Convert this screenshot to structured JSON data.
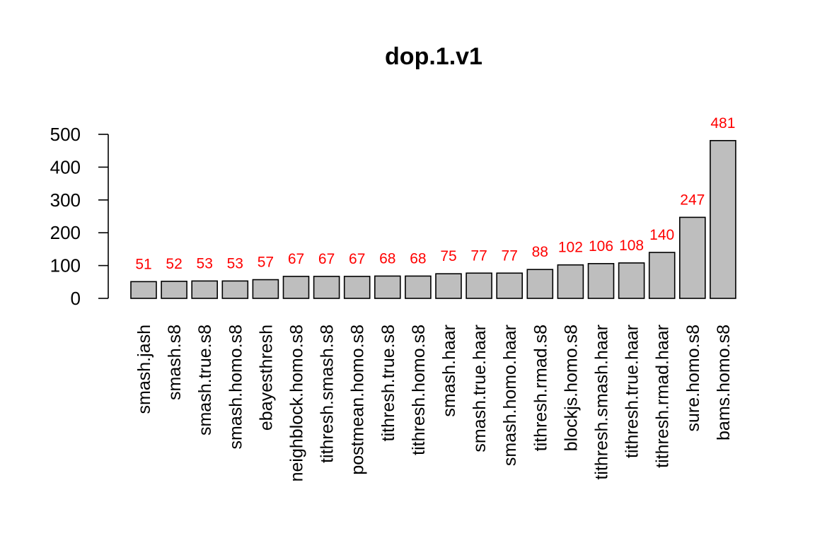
{
  "chart_data": {
    "type": "bar",
    "title": "dop.1.v1",
    "xlabel": "",
    "ylabel": "",
    "categories": [
      "smash.jash",
      "smash.s8",
      "smash.true.s8",
      "smash.homo.s8",
      "ebayesthresh",
      "neighblock.homo.s8",
      "tithresh.smash.s8",
      "postmean.homo.s8",
      "tithresh.true.s8",
      "tithresh.homo.s8",
      "smash.haar",
      "smash.true.haar",
      "smash.homo.haar",
      "tithresh.rmad.s8",
      "blockjs.homo.s8",
      "tithresh.smash.haar",
      "tithresh.true.haar",
      "tithresh.rmad.haar",
      "sure.homo.s8",
      "bams.homo.s8"
    ],
    "values": [
      51,
      52,
      53,
      53,
      57,
      67,
      67,
      67,
      68,
      68,
      75,
      77,
      77,
      88,
      102,
      106,
      108,
      140,
      247,
      481
    ],
    "value_labels": [
      "51",
      "52",
      "53",
      "53",
      "57",
      "67",
      "67",
      "67",
      "68",
      "68",
      "75",
      "77",
      "77",
      "88",
      "102",
      "106",
      "108",
      "140",
      "247",
      "481"
    ],
    "ylim": [
      0,
      500
    ],
    "yticks": [
      0,
      100,
      200,
      300,
      400,
      500
    ],
    "ytick_labels": [
      "0",
      "100",
      "200",
      "300",
      "400",
      "500"
    ],
    "grid": false,
    "legend": "none",
    "colors": {
      "bar_fill": "#bebebe",
      "bar_stroke": "#000000",
      "value_label": "#ff0000",
      "text": "#000000"
    }
  }
}
